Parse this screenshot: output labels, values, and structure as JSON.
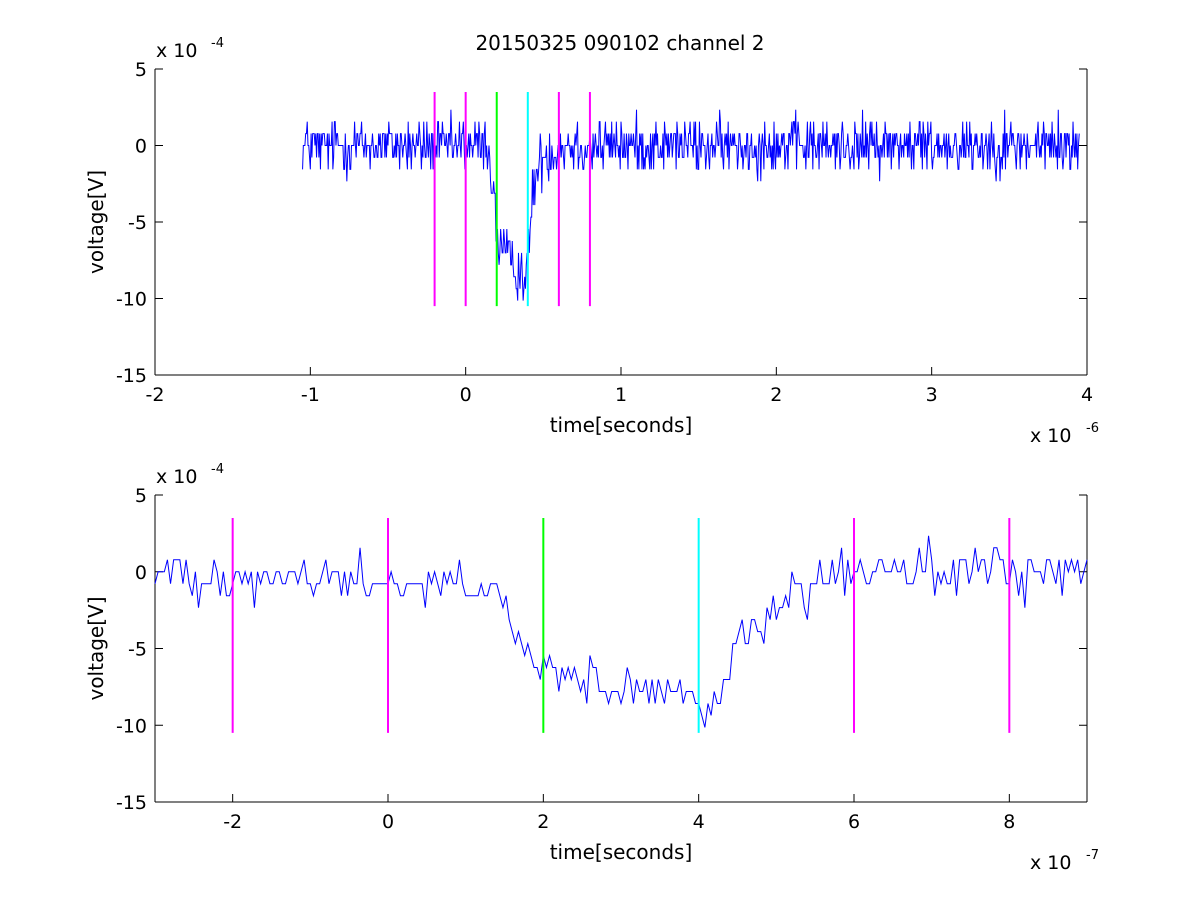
{
  "figure": {
    "title": "20150325 090102 channel 2"
  },
  "chart_data": [
    {
      "type": "line",
      "title": "20150325 090102 channel 2",
      "xlabel": "time[seconds]",
      "ylabel": "voltage[V]",
      "x_exponent_base": "x 10",
      "x_exponent_power": "-6",
      "y_exponent_base": "x 10",
      "y_exponent_power": "-4",
      "xlim": [
        -2,
        4
      ],
      "ylim": [
        -15,
        5
      ],
      "xticks": [
        -2,
        -1,
        0,
        1,
        2,
        3,
        4
      ],
      "xtick_labels": [
        "-2",
        "-1",
        "0",
        "1",
        "2",
        "3",
        "4"
      ],
      "yticks": [
        -15,
        -10,
        -5,
        0,
        5
      ],
      "ytick_labels": [
        "-15",
        "-10",
        "-5",
        "0",
        "5"
      ],
      "grid": false,
      "series": [
        {
          "color": "#0000ff",
          "sample_step": 0.005,
          "x_start": -1.05,
          "x_end": 3.95,
          "profile": [
            [
              -1.05,
              0
            ],
            [
              0.14,
              0
            ],
            [
              0.18,
              -3
            ],
            [
              0.2,
              -6
            ],
            [
              0.3,
              -7.8
            ],
            [
              0.4,
              -8.5
            ],
            [
              0.43,
              -3
            ],
            [
              0.48,
              -1
            ],
            [
              0.6,
              0
            ],
            [
              3.95,
              0
            ]
          ],
          "noise_amplitude": 1.5
        }
      ],
      "markers": [
        {
          "x": -0.2,
          "y_range": [
            -10.5,
            3.5
          ],
          "color": "#ff00ff"
        },
        {
          "x": 0.0,
          "y_range": [
            -10.5,
            3.5
          ],
          "color": "#ff00ff"
        },
        {
          "x": 0.2,
          "y_range": [
            -10.5,
            3.5
          ],
          "color": "#00ff00"
        },
        {
          "x": 0.4,
          "y_range": [
            -10.5,
            3.5
          ],
          "color": "#00ffff"
        },
        {
          "x": 0.6,
          "y_range": [
            -10.5,
            3.5
          ],
          "color": "#ff00ff"
        },
        {
          "x": 0.8,
          "y_range": [
            -10.5,
            3.5
          ],
          "color": "#ff00ff"
        }
      ]
    },
    {
      "type": "line",
      "title": "",
      "xlabel": "time[seconds]",
      "ylabel": "voltage[V]",
      "x_exponent_base": "x 10",
      "x_exponent_power": "-7",
      "y_exponent_base": "x 10",
      "y_exponent_power": "-4",
      "xlim": [
        -3,
        9
      ],
      "ylim": [
        -15,
        5
      ],
      "xticks": [
        -2,
        0,
        2,
        4,
        6,
        8
      ],
      "xtick_labels": [
        "-2",
        "0",
        "2",
        "4",
        "6",
        "8"
      ],
      "yticks": [
        -15,
        -10,
        -5,
        0,
        5
      ],
      "ytick_labels": [
        "-15",
        "-10",
        "-5",
        "0",
        "5"
      ],
      "grid": false,
      "series": [
        {
          "color": "#0000ff",
          "sample_step": 0.04,
          "x_start": -3,
          "x_end": 9,
          "profile": [
            [
              -3,
              0
            ],
            [
              1.4,
              -1
            ],
            [
              1.6,
              -4
            ],
            [
              1.8,
              -6
            ],
            [
              2.0,
              -6.5
            ],
            [
              2.5,
              -7
            ],
            [
              3.0,
              -8
            ],
            [
              3.5,
              -8
            ],
            [
              4.0,
              -8.5
            ],
            [
              4.2,
              -9
            ],
            [
              4.5,
              -5
            ],
            [
              5.0,
              -2
            ],
            [
              5.5,
              -1
            ],
            [
              6.0,
              0
            ],
            [
              9,
              0
            ]
          ],
          "noise_amplitude": 1.3
        }
      ],
      "markers": [
        {
          "x": -2,
          "y_range": [
            -10.5,
            3.5
          ],
          "color": "#ff00ff"
        },
        {
          "x": 0,
          "y_range": [
            -10.5,
            3.5
          ],
          "color": "#ff00ff"
        },
        {
          "x": 2,
          "y_range": [
            -10.5,
            3.5
          ],
          "color": "#00ff00"
        },
        {
          "x": 4,
          "y_range": [
            -10.5,
            3.5
          ],
          "color": "#00ffff"
        },
        {
          "x": 6,
          "y_range": [
            -10.5,
            3.5
          ],
          "color": "#ff00ff"
        },
        {
          "x": 8,
          "y_range": [
            -10.5,
            3.5
          ],
          "color": "#ff00ff"
        }
      ]
    }
  ]
}
